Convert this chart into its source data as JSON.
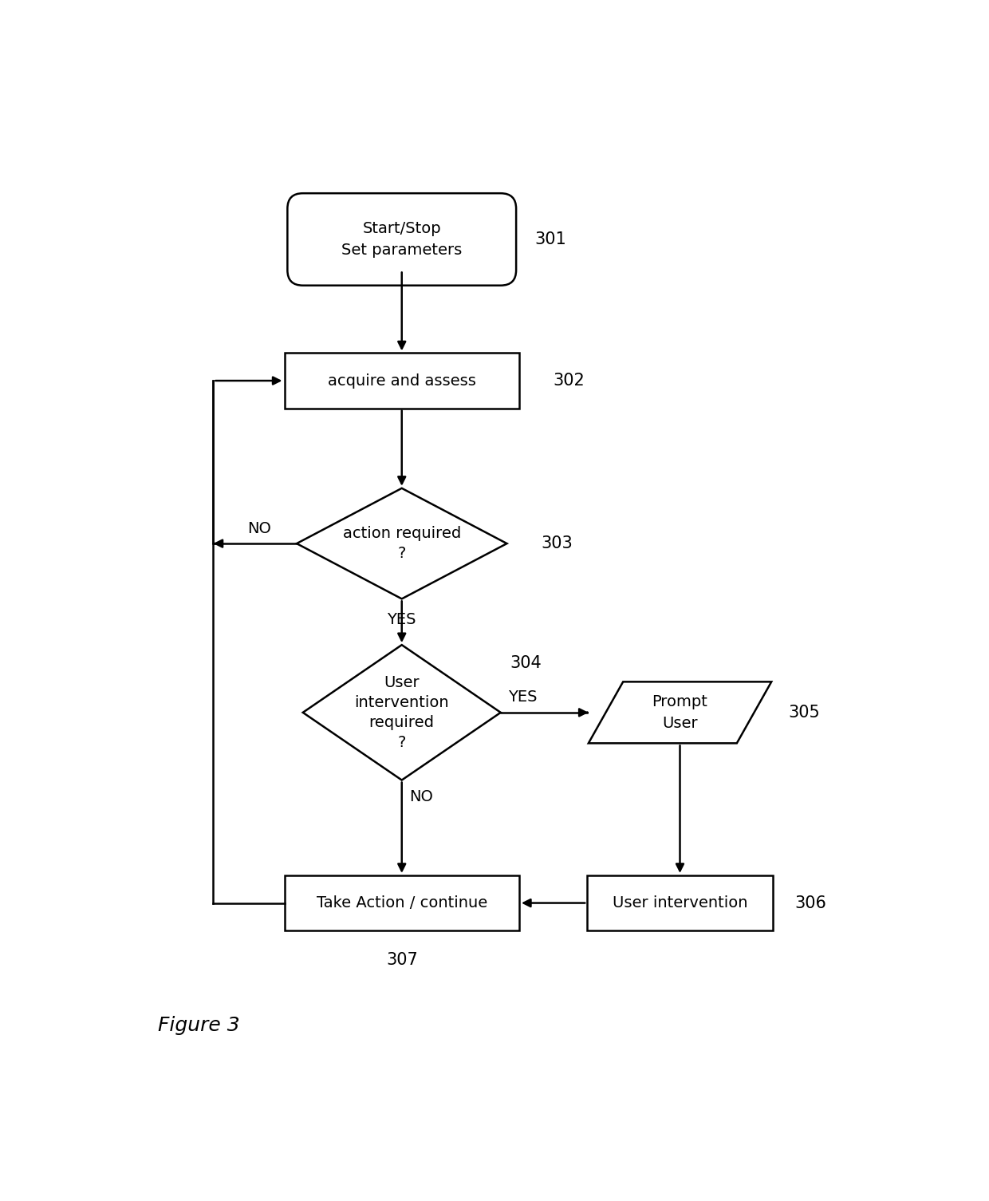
{
  "background_color": "#ffffff",
  "figure_label": "Figure 3",
  "node_301_label": "Start/Stop\nSet parameters",
  "node_302_label": "acquire and assess",
  "node_303_label": "action required\n?",
  "node_304_label": "User\nintervention\nrequired\n?",
  "node_305_label": "Prompt\nUser",
  "node_306_label": "User intervention",
  "node_307_label": "Take Action / continue",
  "ref_301": "301",
  "ref_302": "302",
  "ref_303": "303",
  "ref_304": "304",
  "ref_305": "305",
  "ref_306": "306",
  "ref_307": "307",
  "line_color": "#000000",
  "fill_color": "#ffffff",
  "text_color": "#000000",
  "font_size": 14,
  "ref_font_size": 15,
  "fig_label_font_size": 18
}
